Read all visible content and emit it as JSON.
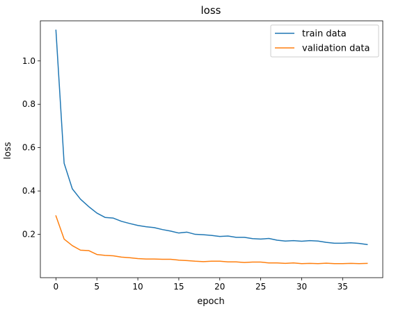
{
  "chart_data": {
    "type": "line",
    "title": "loss",
    "xlabel": "epoch",
    "ylabel": "loss",
    "xlim": [
      -1.9,
      39.9
    ],
    "ylim": [
      0.0,
      1.185
    ],
    "xticks": [
      0,
      5,
      10,
      15,
      20,
      25,
      30,
      35
    ],
    "yticks": [
      0.2,
      0.4,
      0.6,
      0.8,
      1.0
    ],
    "ytick_labels": [
      "0.2",
      "0.4",
      "0.6",
      "0.8",
      "1.0"
    ],
    "grid": false,
    "legend_position": "upper-right",
    "x": [
      0,
      1,
      2,
      3,
      4,
      5,
      6,
      7,
      8,
      9,
      10,
      11,
      12,
      13,
      14,
      15,
      16,
      17,
      18,
      19,
      20,
      21,
      22,
      23,
      24,
      25,
      26,
      27,
      28,
      29,
      30,
      31,
      32,
      33,
      34,
      35,
      36,
      37,
      38
    ],
    "series": [
      {
        "name": "train data",
        "color": "#1f77b4",
        "values": [
          1.142,
          0.528,
          0.41,
          0.362,
          0.328,
          0.298,
          0.278,
          0.275,
          0.26,
          0.25,
          0.241,
          0.235,
          0.231,
          0.222,
          0.215,
          0.206,
          0.21,
          0.2,
          0.198,
          0.195,
          0.19,
          0.192,
          0.186,
          0.186,
          0.18,
          0.178,
          0.181,
          0.173,
          0.169,
          0.171,
          0.168,
          0.171,
          0.169,
          0.163,
          0.159,
          0.159,
          0.161,
          0.158,
          0.153
        ]
      },
      {
        "name": "validation data",
        "color": "#ff7f0e",
        "values": [
          0.285,
          0.178,
          0.148,
          0.127,
          0.125,
          0.107,
          0.103,
          0.101,
          0.095,
          0.092,
          0.088,
          0.086,
          0.086,
          0.085,
          0.085,
          0.081,
          0.079,
          0.076,
          0.074,
          0.076,
          0.076,
          0.073,
          0.073,
          0.07,
          0.072,
          0.072,
          0.068,
          0.068,
          0.066,
          0.068,
          0.065,
          0.066,
          0.065,
          0.067,
          0.065,
          0.065,
          0.066,
          0.065,
          0.066
        ]
      }
    ]
  }
}
